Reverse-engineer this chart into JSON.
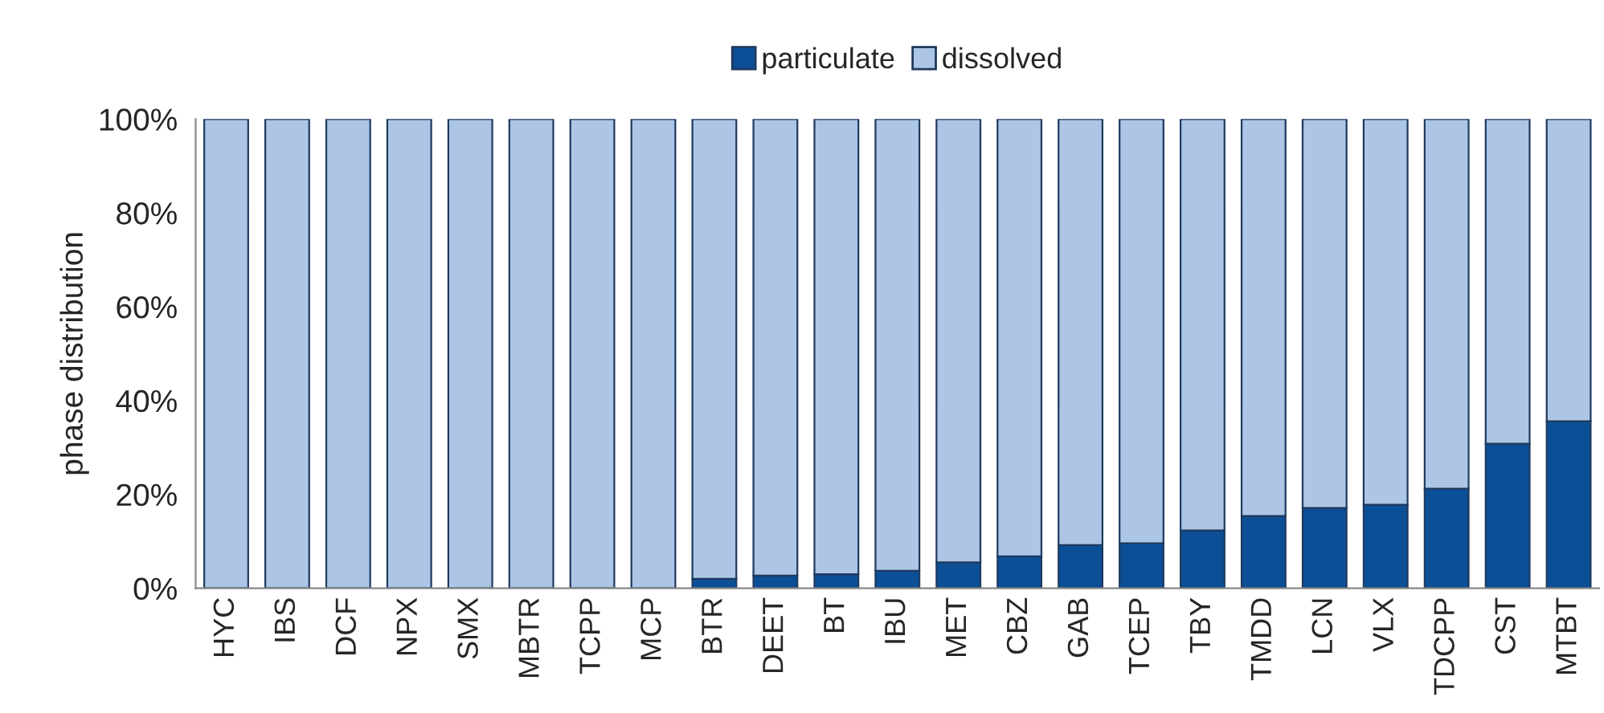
{
  "chart_data": {
    "type": "bar",
    "stacked": true,
    "ylabel": "phase distribution",
    "categories": [
      "HYC",
      "IBS",
      "DCF",
      "NPX",
      "SMX",
      "MBTR",
      "TCPP",
      "MCP",
      "BTR",
      "DEET",
      "BT",
      "IBU",
      "MET",
      "CBZ",
      "GAB",
      "TCEP",
      "TBY",
      "TMDD",
      "LCN",
      "VLX",
      "TDCPP",
      "CST",
      "MTBT"
    ],
    "series": [
      {
        "name": "particulate",
        "color": "#0b4f96",
        "values": [
          0,
          0,
          0,
          0,
          0,
          0,
          0,
          0,
          2,
          2.7,
          3,
          3.7,
          5.5,
          6.8,
          9.2,
          9.6,
          12.3,
          15.4,
          17.1,
          17.8,
          21.2,
          30.8,
          35.6
        ]
      },
      {
        "name": "dissolved",
        "color": "#adc6e6",
        "values": [
          100,
          100,
          100,
          100,
          100,
          100,
          100,
          100,
          98,
          97.3,
          97,
          96.3,
          94.5,
          93.2,
          90.8,
          90.4,
          87.7,
          84.6,
          82.9,
          82.2,
          78.8,
          69.2,
          64.4
        ]
      }
    ],
    "ylim": [
      0,
      100
    ],
    "yticks": [
      {
        "value": 0,
        "label": "0%"
      },
      {
        "value": 20,
        "label": "20%"
      },
      {
        "value": 40,
        "label": "40%"
      },
      {
        "value": 60,
        "label": "60%"
      },
      {
        "value": 80,
        "label": "80%"
      },
      {
        "value": 100,
        "label": "100%"
      }
    ],
    "grid": false,
    "legend": "top"
  }
}
